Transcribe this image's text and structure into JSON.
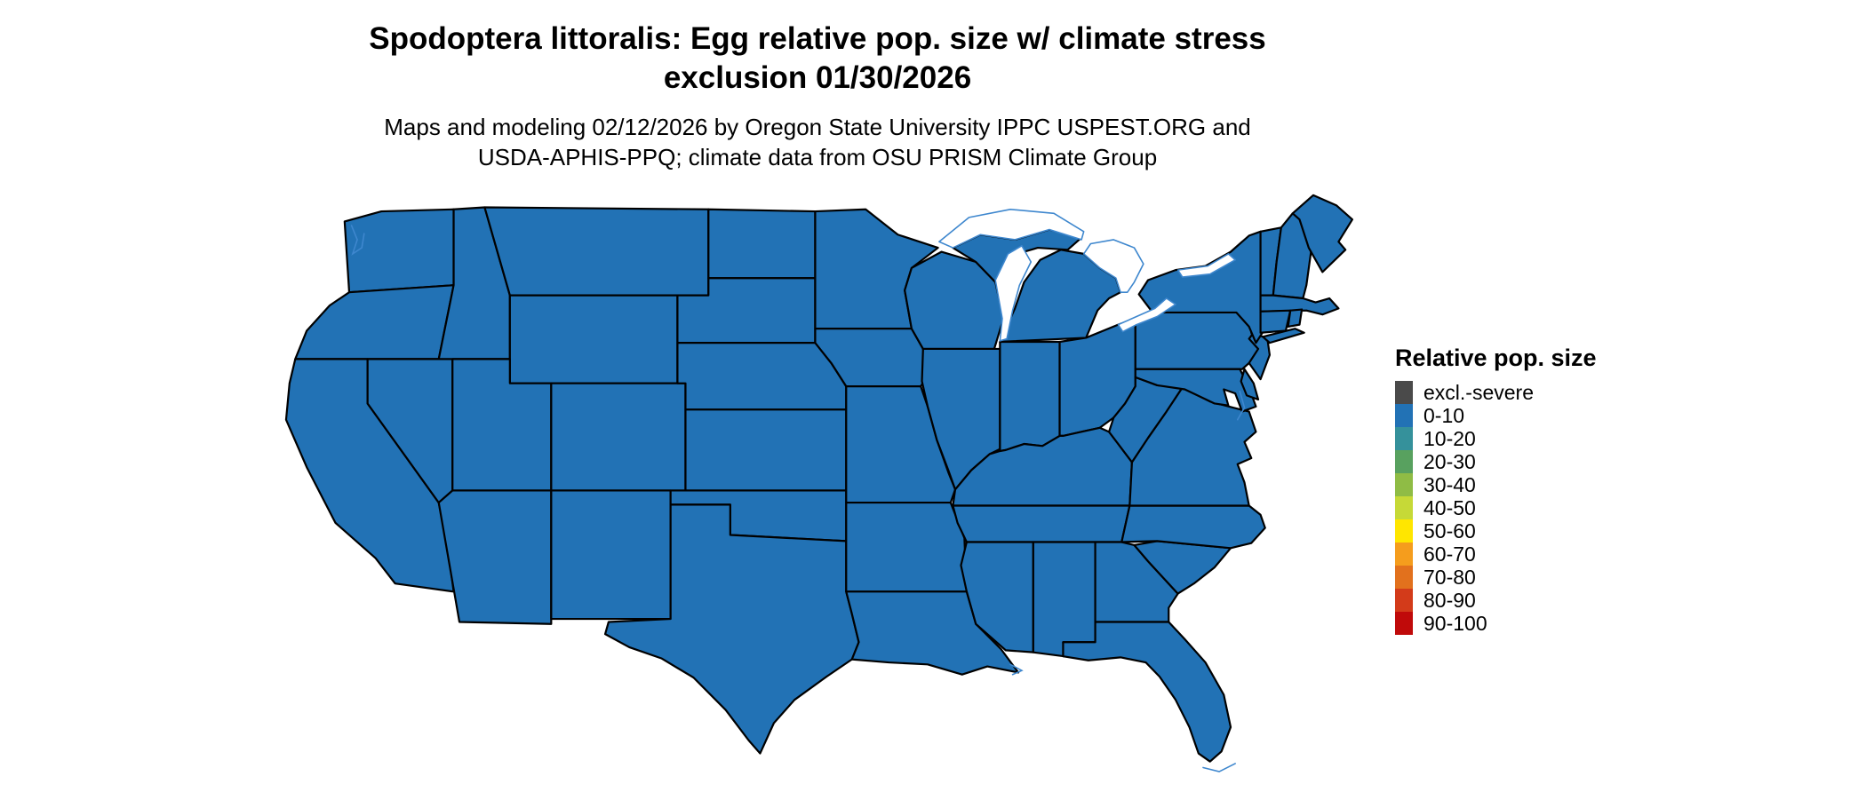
{
  "title": {
    "line1": "Spodoptera littoralis: Egg relative pop. size w/ climate stress",
    "line2": "exclusion 01/30/2026"
  },
  "subtitle": {
    "line1": "Maps and modeling 02/12/2026 by Oregon State University IPPC USPEST.ORG and",
    "line2": "USDA-APHIS-PPQ; climate data from OSU PRISM Climate Group"
  },
  "legend": {
    "title": "Relative pop. size",
    "entries": [
      {
        "label": "excl.-severe",
        "color": "#4A4A4A"
      },
      {
        "label": "0-10",
        "color": "#2272B5"
      },
      {
        "label": "10-20",
        "color": "#35919B"
      },
      {
        "label": "20-30",
        "color": "#58A15F"
      },
      {
        "label": "30-40",
        "color": "#8FBC45"
      },
      {
        "label": "40-50",
        "color": "#C6D937"
      },
      {
        "label": "50-60",
        "color": "#FFE600"
      },
      {
        "label": "60-70",
        "color": "#F59D1D"
      },
      {
        "label": "70-80",
        "color": "#E2711D"
      },
      {
        "label": "80-90",
        "color": "#D33B1A"
      },
      {
        "label": "90-100",
        "color": "#C00A0A"
      }
    ]
  },
  "map": {
    "fill_color": "#2272B5",
    "border_color": "#000000",
    "water_color": "#3E87CE",
    "background": "#FFFFFF",
    "all_states_category": "0-10"
  },
  "chart_data": {
    "type": "choropleth",
    "region": "Contiguous United States (state boundaries)",
    "variable": "Relative pop. size",
    "legend_categories": [
      "excl.-severe",
      "0-10",
      "10-20",
      "20-30",
      "30-40",
      "40-50",
      "50-60",
      "60-70",
      "70-80",
      "80-90",
      "90-100"
    ],
    "legend_colors": [
      "#4A4A4A",
      "#2272B5",
      "#35919B",
      "#58A15F",
      "#8FBC45",
      "#C6D937",
      "#FFE600",
      "#F59D1D",
      "#E2711D",
      "#D33B1A",
      "#C00A0A"
    ],
    "depicted_values": "All mapped states shown uniformly in the 0-10 category (blue fill)"
  }
}
